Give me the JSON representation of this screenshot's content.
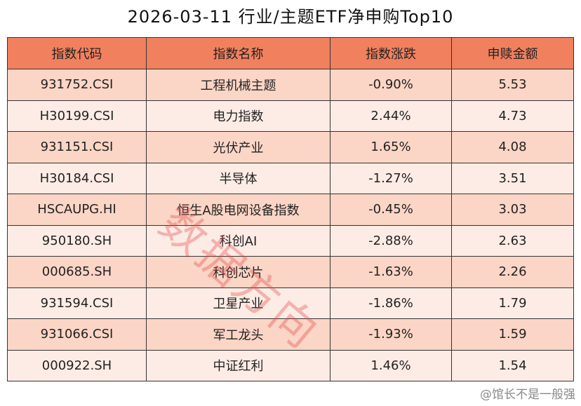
{
  "header": {
    "title": "2026-03-11 行业/主题ETF净申购Top10"
  },
  "table": {
    "columns": [
      "指数代码",
      "指数名称",
      "指数涨跌",
      "申赎金额"
    ],
    "rows": [
      [
        "931752.CSI",
        "工程机械主题",
        "-0.90%",
        "5.53"
      ],
      [
        "H30199.CSI",
        "电力指数",
        "2.44%",
        "4.73"
      ],
      [
        "931151.CSI",
        "光伏产业",
        "1.65%",
        "4.08"
      ],
      [
        "H30184.CSI",
        "半导体",
        "-1.27%",
        "3.51"
      ],
      [
        "HSCAUPG.HI",
        "恒生A股电网设备指数",
        "-0.45%",
        "3.03"
      ],
      [
        "950180.SH",
        "科创AI",
        "-2.88%",
        "2.63"
      ],
      [
        "000685.SH",
        "科创芯片",
        "-1.63%",
        "2.26"
      ],
      [
        "931594.CSI",
        "卫星产业",
        "-1.86%",
        "1.79"
      ],
      [
        "931066.CSI",
        "军工龙头",
        "-1.93%",
        "1.59"
      ],
      [
        "000922.SH",
        "中证红利",
        "1.46%",
        "1.54"
      ]
    ]
  },
  "watermark": "数据方向",
  "footer": "@馆长不是一般强"
}
